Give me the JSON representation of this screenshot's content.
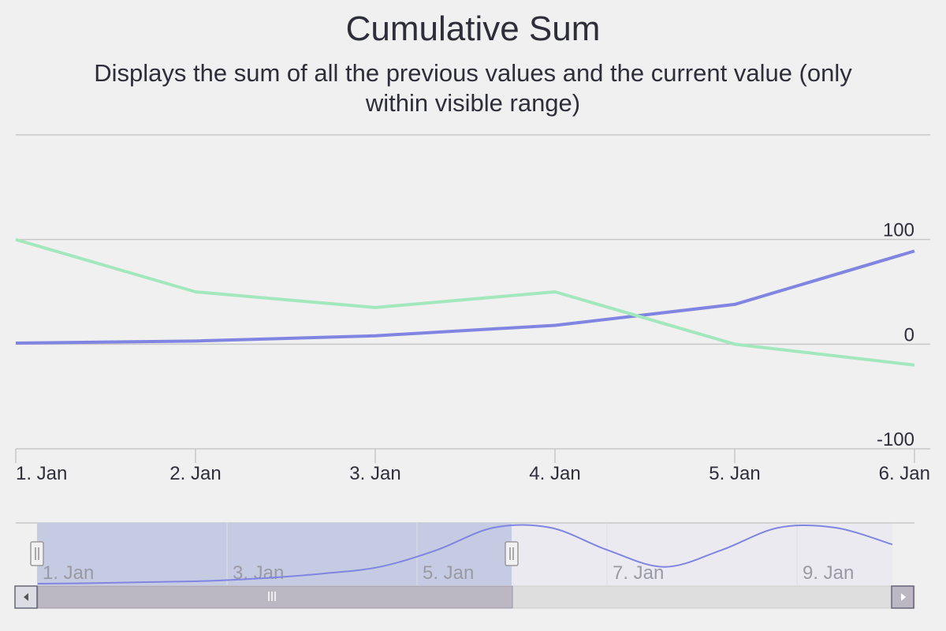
{
  "title": "Cumulative Sum",
  "subtitle": "Displays the sum of all the previous values and the current value (only within visible range)",
  "colors": {
    "background": "#f0f0f0",
    "grid": "#c8c8c8",
    "series_blue": "#7f85e0",
    "series_green": "#a3e8bd",
    "text": "#2e2e3a",
    "navigator_text": "#9a9aa4",
    "navigator_mask": "#c5cbe2",
    "scrollbar_thumb": "#bbb8c4"
  },
  "chart_data": {
    "type": "line",
    "x": [
      "1. Jan",
      "2. Jan",
      "3. Jan",
      "4. Jan",
      "5. Jan",
      "6. Jan"
    ],
    "ylim": [
      -100,
      200
    ],
    "yticks": [
      {
        "label": "-100",
        "value": -100
      },
      {
        "label": "0",
        "value": 0
      },
      {
        "label": "100",
        "value": 100
      }
    ],
    "grid": true,
    "series": [
      {
        "color": "#7f85e0",
        "values": [
          1,
          3,
          8,
          18,
          38,
          89
        ]
      },
      {
        "color": "#a3e8bd",
        "values": [
          100,
          50,
          35,
          50,
          0,
          -20
        ]
      }
    ],
    "navigator": {
      "x_labels": [
        "1. Jan",
        "3. Jan",
        "5. Jan",
        "7. Jan",
        "9. Jan"
      ],
      "values": [
        0,
        1,
        3,
        5,
        10,
        18,
        30,
        60,
        100,
        100,
        60,
        30,
        60,
        100,
        100,
        70
      ],
      "ylim": [
        0,
        100
      ],
      "selected_range": [
        "1. Jan",
        "6. Jan"
      ]
    }
  }
}
